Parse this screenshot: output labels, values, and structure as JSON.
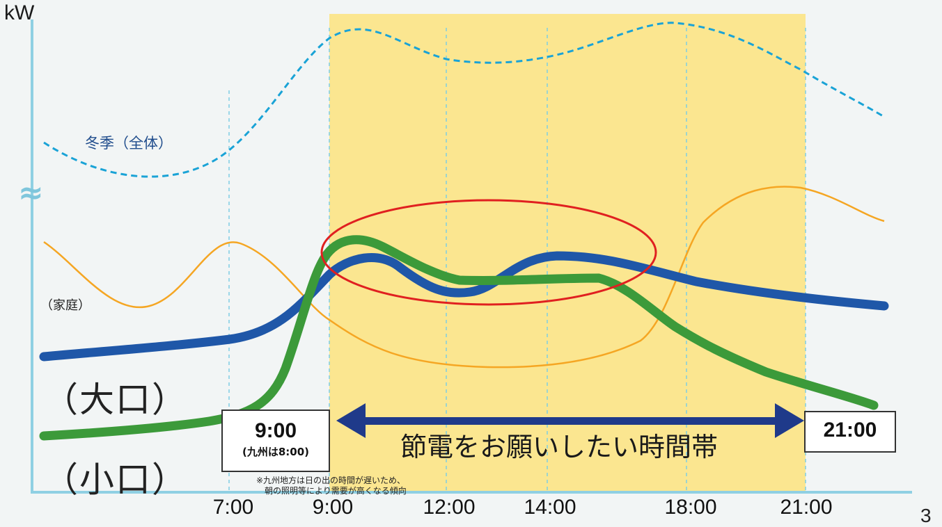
{
  "chart_data": {
    "type": "line",
    "unit_label": "kW",
    "axis_break_symbol": "≈",
    "x_tick_labels": [
      "7:00",
      "9:00",
      "12:00",
      "14:00",
      "18:00",
      "21:00"
    ],
    "page_number": "3",
    "highlight_band": {
      "from": "9:00",
      "to": "21:00",
      "label": "節電をお願いしたい時間帯",
      "start_label": "9:00",
      "start_sublabel": "(九州は8:00)",
      "end_label": "21:00",
      "color": "#fbe690"
    },
    "footnote": [
      "※九州地方は日の出の時間が遅いため、",
      "朝の照明等により需要が高くなる傾向"
    ],
    "series": [
      {
        "name": "冬季（全体）",
        "style": "dashed",
        "color": "#1aa3d6"
      },
      {
        "name": "（家庭）",
        "style": "thin",
        "color": "#f5a623"
      },
      {
        "name": "（大口）",
        "style": "thick",
        "color": "#1f57a8"
      },
      {
        "name": "（小口）",
        "style": "thick",
        "color": "#3c9a3a"
      }
    ],
    "annotation": {
      "shape": "ellipse",
      "color": "#e02020"
    },
    "y_values_shown": false
  }
}
